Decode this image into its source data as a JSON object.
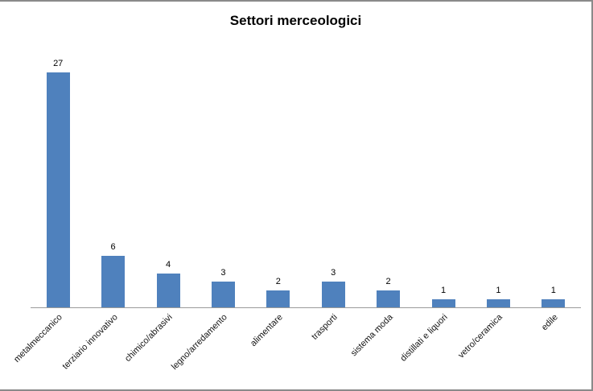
{
  "chart_data": {
    "type": "bar",
    "title": "Settori merceologici",
    "categories": [
      "metalmeccanico",
      "terziario innovativo",
      "chimico/abrasivi",
      "legno/arredamento",
      "alimentare",
      "trasporti",
      "sistema moda",
      "distillati e liquori",
      "vetro/ceramica",
      "edile"
    ],
    "values": [
      27,
      6,
      4,
      3,
      2,
      3,
      2,
      1,
      1,
      1
    ],
    "data_labels": [
      27,
      6,
      4,
      3,
      2,
      3,
      2,
      1,
      1,
      1
    ],
    "xlabel": "",
    "ylabel": "",
    "ylim": [
      0,
      27
    ],
    "grid": false,
    "legend": false,
    "x_label_rotation_deg": 45,
    "bar_color": "#4f81bd",
    "axis_color": "#9b9b9b",
    "frame_border_color": "#8a8a8a",
    "title_color": "#000000",
    "label_color": "#141414"
  }
}
